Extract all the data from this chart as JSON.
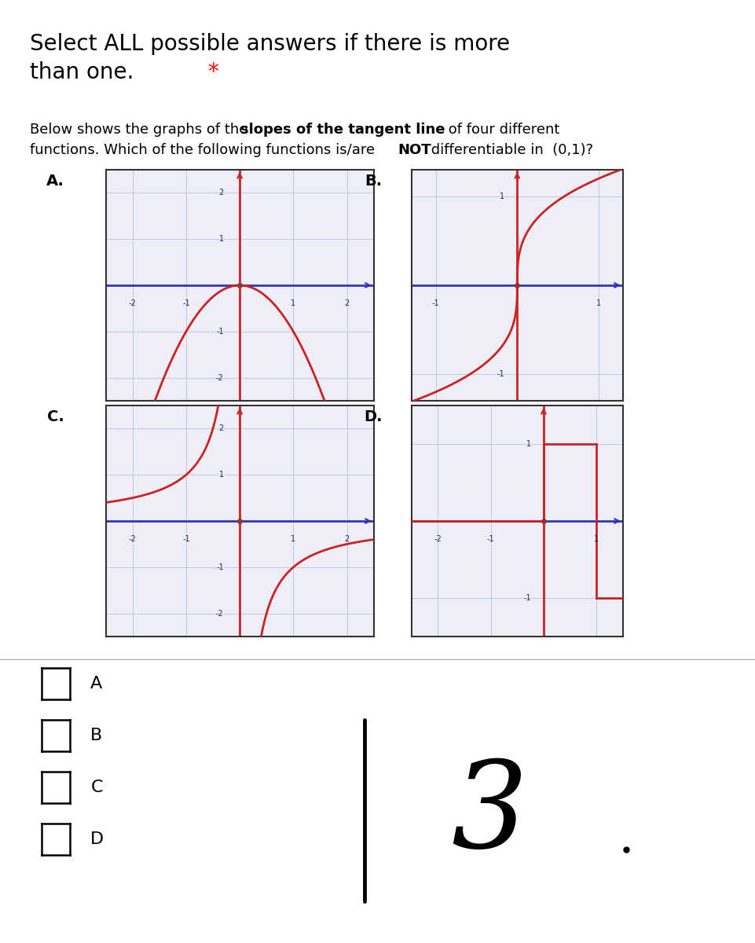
{
  "title": "Select ALL possible answers if there is more\nthan one. *",
  "question_pre": "Below shows the graphs of the ",
  "question_bold": "slopes of the tangent line",
  "question_post": " of four different",
  "question_line2_pre": "functions. Which of the following functions is/are ",
  "question_not": "NOT",
  "question_line2_post": " differentiable in  (0,1)?",
  "labels": [
    "A.",
    "B.",
    "C.",
    "D."
  ],
  "checkboxes": [
    "A",
    "B",
    "C",
    "D"
  ],
  "bg_color": "#ffffff",
  "grid_color": "#c0c0e0",
  "axis_x_color": "#3333bb",
  "axis_y_color": "#cc2222",
  "curve_color": "#cc2222",
  "plot_bg": "#eeeef8",
  "origin_color": "#993333"
}
